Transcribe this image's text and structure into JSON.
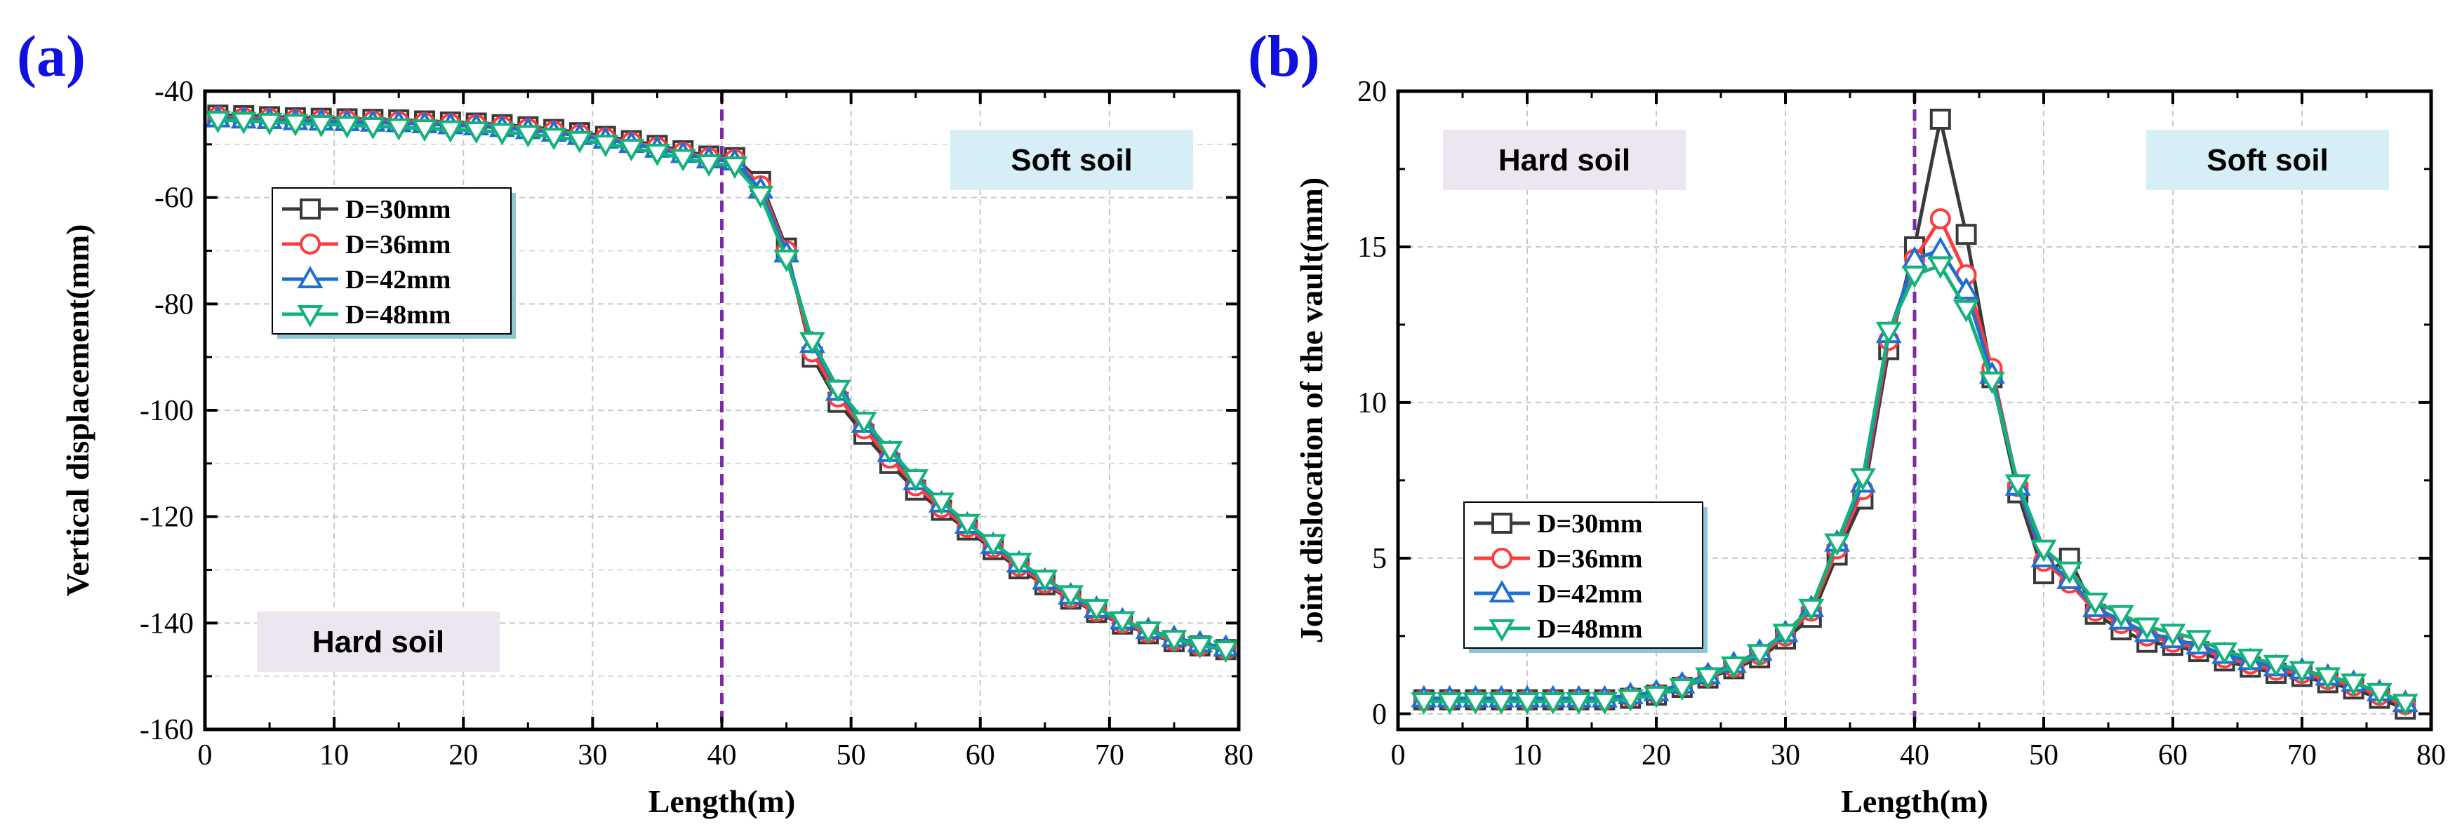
{
  "figure": {
    "panel_color": "#1010e0",
    "divider_color": "#7b2c9e"
  },
  "chart_data": [
    {
      "type": "line",
      "panel": "(a)",
      "xlabel": "Length(m)",
      "ylabel": "Vertical displacement(mm)",
      "xlim": [
        0,
        80
      ],
      "ylim": [
        -160,
        -40
      ],
      "xticks": [
        0,
        10,
        20,
        30,
        40,
        50,
        60,
        70,
        80
      ],
      "yticks": [
        -40,
        -60,
        -80,
        -100,
        -120,
        -140,
        -160
      ],
      "grid": true,
      "divider_x": 40,
      "legend_position": "upper-left",
      "regions": [
        {
          "label": "Soft soil",
          "position": "top-right",
          "bg": "#d6eef5"
        },
        {
          "label": "Hard soil",
          "position": "bottom-left",
          "bg": "#ece6f1"
        }
      ],
      "x": [
        1,
        3,
        5,
        7,
        9,
        11,
        13,
        15,
        17,
        19,
        21,
        23,
        25,
        27,
        29,
        31,
        33,
        35,
        37,
        39,
        41,
        43,
        45,
        47,
        49,
        51,
        53,
        55,
        57,
        59,
        61,
        63,
        65,
        67,
        69,
        71,
        73,
        75,
        77,
        79
      ],
      "series": [
        {
          "name": "D=30mm",
          "color": "#3a3a3a",
          "marker": "square",
          "values": [
            -44.5,
            -44.6,
            -44.8,
            -45.0,
            -45.1,
            -45.2,
            -45.3,
            -45.4,
            -45.6,
            -45.8,
            -46.0,
            -46.3,
            -46.7,
            -47.2,
            -47.8,
            -48.5,
            -49.3,
            -50.2,
            -51.2,
            -52.2,
            -52.5,
            -57,
            -69.5,
            -90,
            -98.5,
            -104.5,
            -110,
            -115,
            -118.8,
            -122.5,
            -126.2,
            -129.8,
            -132.8,
            -135.5,
            -138,
            -140.2,
            -142,
            -143.5,
            -144.3,
            -145
          ]
        },
        {
          "name": "D=36mm",
          "color": "#ff3b3b",
          "marker": "circle",
          "values": [
            -44.8,
            -45.0,
            -45.1,
            -45.3,
            -45.4,
            -45.5,
            -45.6,
            -45.7,
            -45.9,
            -46.1,
            -46.3,
            -46.6,
            -47.0,
            -47.5,
            -48.1,
            -48.8,
            -49.6,
            -50.5,
            -51.5,
            -52.5,
            -52.8,
            -57.8,
            -70,
            -89,
            -97.5,
            -103.5,
            -109,
            -114.2,
            -118.3,
            -122,
            -125.8,
            -129.3,
            -132.5,
            -135.3,
            -137.8,
            -140,
            -141.8,
            -143.3,
            -144.3,
            -145
          ]
        },
        {
          "name": "D=42mm",
          "color": "#1f6fd1",
          "marker": "triangle-up",
          "values": [
            -45.1,
            -45.3,
            -45.4,
            -45.6,
            -45.7,
            -45.8,
            -45.9,
            -46.0,
            -46.2,
            -46.4,
            -46.6,
            -46.9,
            -47.3,
            -47.8,
            -48.4,
            -49.1,
            -49.9,
            -50.8,
            -51.8,
            -52.8,
            -53.2,
            -58.5,
            -70.5,
            -87.5,
            -96.5,
            -102.5,
            -108,
            -113.3,
            -117.5,
            -121.5,
            -125.3,
            -128.8,
            -132,
            -134.8,
            -137.3,
            -139.5,
            -141.3,
            -142.8,
            -143.8,
            -144.6
          ]
        },
        {
          "name": "D=48mm",
          "color": "#14b27a",
          "marker": "triangle-down",
          "values": [
            -45.4,
            -45.6,
            -45.8,
            -46.0,
            -46.2,
            -46.4,
            -46.6,
            -46.8,
            -47.0,
            -47.2,
            -47.4,
            -47.7,
            -48.1,
            -48.6,
            -49.2,
            -49.9,
            -50.7,
            -51.6,
            -52.6,
            -53.6,
            -54,
            -59.5,
            -71.5,
            -87,
            -96,
            -102,
            -107.5,
            -112.8,
            -117.2,
            -121.2,
            -125,
            -128.5,
            -131.7,
            -134.6,
            -137.2,
            -139.5,
            -141.4,
            -143,
            -144.2,
            -145
          ]
        }
      ]
    },
    {
      "type": "line",
      "panel": "(b)",
      "xlabel": "Length(m)",
      "ylabel": "Joint dislocation of the vault(mm)",
      "xlim": [
        0,
        80
      ],
      "ylim": [
        -0.5,
        20
      ],
      "xticks": [
        0,
        10,
        20,
        30,
        40,
        50,
        60,
        70,
        80
      ],
      "yticks": [
        0,
        5,
        10,
        15,
        20
      ],
      "grid": true,
      "divider_x": 40,
      "legend_position": "lower-left",
      "regions": [
        {
          "label": "Hard soil",
          "position": "top-left",
          "bg": "#ece6f1"
        },
        {
          "label": "Soft soil",
          "position": "top-right",
          "bg": "#d6eef5"
        }
      ],
      "x": [
        2,
        4,
        6,
        8,
        10,
        12,
        14,
        16,
        18,
        20,
        22,
        24,
        26,
        28,
        30,
        32,
        34,
        36,
        38,
        40,
        42,
        44,
        46,
        48,
        50,
        52,
        54,
        56,
        58,
        60,
        62,
        64,
        66,
        68,
        70,
        72,
        74,
        76,
        78
      ],
      "series": [
        {
          "name": "D=30mm",
          "color": "#3a3a3a",
          "marker": "square",
          "values": [
            0.45,
            0.45,
            0.45,
            0.45,
            0.45,
            0.45,
            0.45,
            0.45,
            0.5,
            0.6,
            0.85,
            1.15,
            1.45,
            1.8,
            2.4,
            3.1,
            5.1,
            6.9,
            11.7,
            15.0,
            19.1,
            15.4,
            10.8,
            7.1,
            4.5,
            5.0,
            3.2,
            2.7,
            2.3,
            2.2,
            2.0,
            1.7,
            1.5,
            1.3,
            1.2,
            1.0,
            0.8,
            0.5,
            0.15
          ]
        },
        {
          "name": "D=36mm",
          "color": "#ff3b3b",
          "marker": "circle",
          "values": [
            0.45,
            0.45,
            0.45,
            0.45,
            0.45,
            0.45,
            0.45,
            0.45,
            0.55,
            0.65,
            0.9,
            1.2,
            1.5,
            1.9,
            2.5,
            3.3,
            5.3,
            7.2,
            12.0,
            14.6,
            15.9,
            14.1,
            11.1,
            7.3,
            4.9,
            4.2,
            3.3,
            2.9,
            2.5,
            2.3,
            2.1,
            1.8,
            1.6,
            1.4,
            1.3,
            1.1,
            0.9,
            0.6,
            0.3
          ]
        },
        {
          "name": "D=42mm",
          "color": "#1f6fd1",
          "marker": "triangle-up",
          "values": [
            0.5,
            0.5,
            0.5,
            0.5,
            0.5,
            0.5,
            0.5,
            0.5,
            0.6,
            0.7,
            0.95,
            1.25,
            1.6,
            2.0,
            2.6,
            3.4,
            5.5,
            7.4,
            12.2,
            14.6,
            14.9,
            13.6,
            10.9,
            7.3,
            5.0,
            4.3,
            3.4,
            3.0,
            2.6,
            2.4,
            2.2,
            1.9,
            1.7,
            1.5,
            1.4,
            1.2,
            1.0,
            0.7,
            0.35
          ]
        },
        {
          "name": "D=48mm",
          "color": "#14b27a",
          "marker": "triangle-down",
          "values": [
            0.4,
            0.4,
            0.4,
            0.4,
            0.4,
            0.4,
            0.4,
            0.4,
            0.5,
            0.6,
            0.85,
            1.2,
            1.55,
            1.95,
            2.6,
            3.4,
            5.5,
            7.6,
            12.3,
            14.1,
            14.4,
            13.0,
            10.7,
            7.4,
            5.3,
            4.6,
            3.6,
            3.2,
            2.8,
            2.6,
            2.4,
            2.0,
            1.8,
            1.6,
            1.4,
            1.2,
            1.0,
            0.7,
            0.35
          ]
        }
      ]
    }
  ]
}
